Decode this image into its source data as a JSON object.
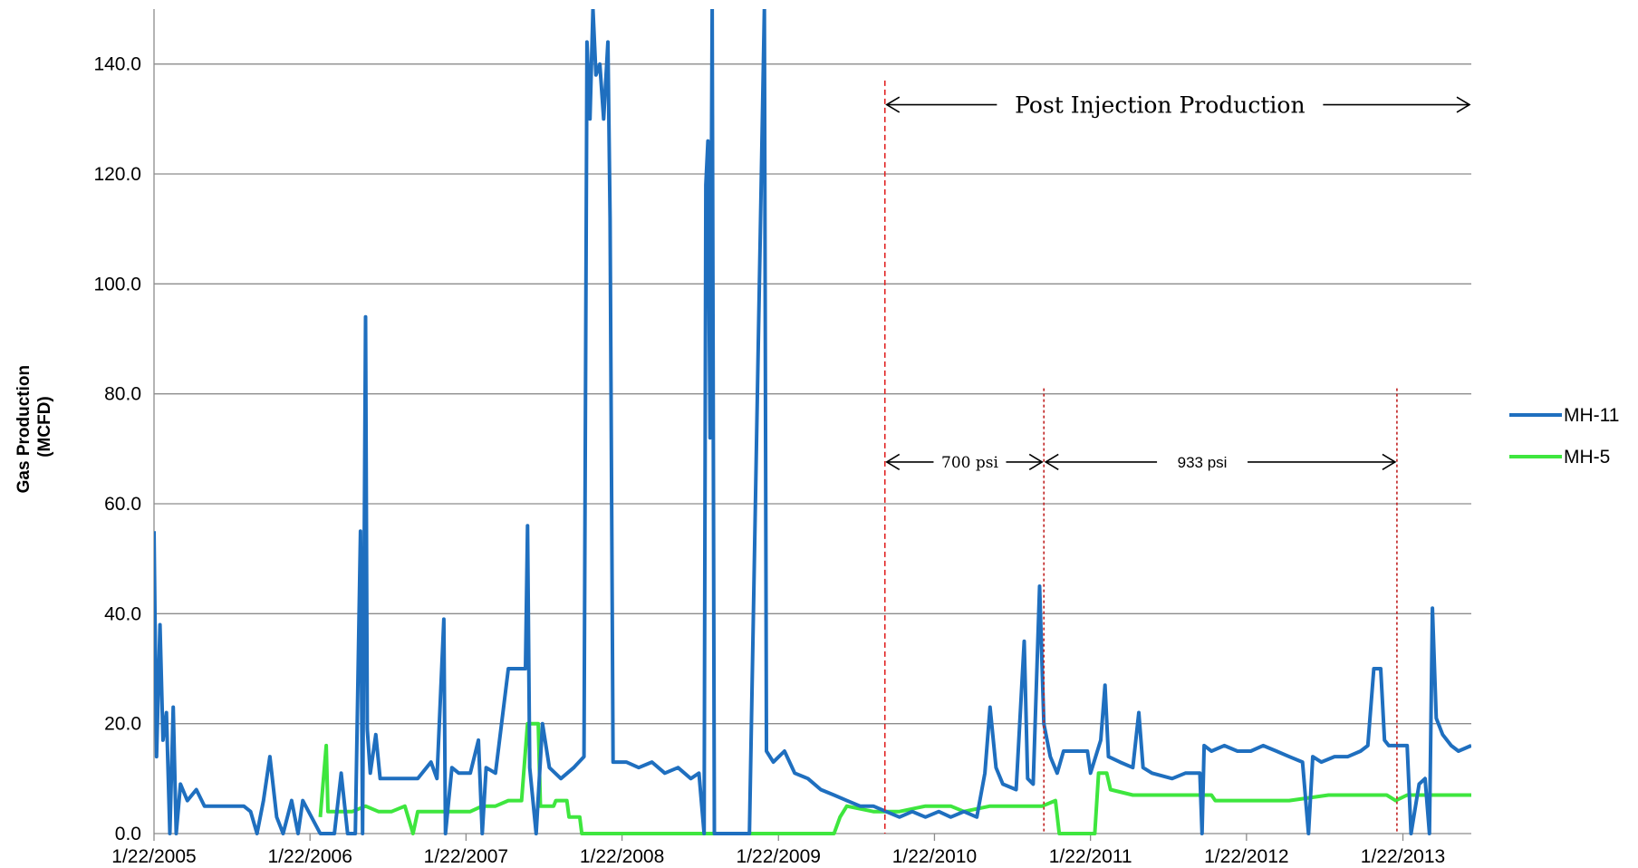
{
  "chart_data": {
    "type": "line",
    "title": "",
    "xlabel": "",
    "ylabel_line1": "Gas Production",
    "ylabel_line2": "(MCFD)",
    "ylim": [
      0,
      150
    ],
    "y_ticks": [
      "0.0",
      "20.0",
      "40.0",
      "60.0",
      "80.0",
      "100.0",
      "120.0",
      "140.0"
    ],
    "y_tick_values": [
      0,
      20,
      40,
      60,
      80,
      100,
      120,
      140
    ],
    "x_range": [
      "2005-01-22",
      "2013-07-01"
    ],
    "x_ticks": [
      "1/22/2005",
      "1/22/2006",
      "1/22/2007",
      "1/22/2008",
      "1/22/2009",
      "1/22/2010",
      "1/22/2011",
      "1/22/2012",
      "1/22/2013"
    ],
    "x_tick_dates": [
      "2005-01-22",
      "2006-01-22",
      "2007-01-22",
      "2008-01-22",
      "2009-01-22",
      "2010-01-22",
      "2011-01-22",
      "2012-01-22",
      "2013-01-22"
    ],
    "grid": "horizontal",
    "legend_position": "right",
    "series": [
      {
        "name": "MH-11",
        "color": "#1f6fbf",
        "points": [
          [
            "2005-01-22",
            55
          ],
          [
            "2005-01-28",
            14
          ],
          [
            "2005-02-05",
            38
          ],
          [
            "2005-02-12",
            17
          ],
          [
            "2005-02-20",
            22
          ],
          [
            "2005-02-28",
            0
          ],
          [
            "2005-03-08",
            23
          ],
          [
            "2005-03-15",
            0
          ],
          [
            "2005-03-25",
            9
          ],
          [
            "2005-04-10",
            6
          ],
          [
            "2005-05-01",
            8
          ],
          [
            "2005-05-20",
            5
          ],
          [
            "2005-06-15",
            5
          ],
          [
            "2005-07-15",
            5
          ],
          [
            "2005-08-20",
            5
          ],
          [
            "2005-09-05",
            4
          ],
          [
            "2005-09-20",
            0
          ],
          [
            "2005-10-05",
            6
          ],
          [
            "2005-10-20",
            14
          ],
          [
            "2005-11-05",
            3
          ],
          [
            "2005-11-20",
            0
          ],
          [
            "2005-12-10",
            6
          ],
          [
            "2005-12-25",
            0
          ],
          [
            "2006-01-05",
            6
          ],
          [
            "2006-02-15",
            0
          ],
          [
            "2006-03-10",
            0
          ],
          [
            "2006-03-20",
            0
          ],
          [
            "2006-04-05",
            11
          ],
          [
            "2006-04-20",
            0
          ],
          [
            "2006-05-08",
            0
          ],
          [
            "2006-05-20",
            55
          ],
          [
            "2006-05-25",
            0
          ],
          [
            "2006-06-01",
            94
          ],
          [
            "2006-06-05",
            19
          ],
          [
            "2006-06-12",
            11
          ],
          [
            "2006-06-25",
            18
          ],
          [
            "2006-07-05",
            10
          ],
          [
            "2006-08-01",
            10
          ],
          [
            "2006-09-01",
            10
          ],
          [
            "2006-10-01",
            10
          ],
          [
            "2006-11-01",
            13
          ],
          [
            "2006-11-15",
            10
          ],
          [
            "2006-12-01",
            39
          ],
          [
            "2006-12-05",
            0
          ],
          [
            "2006-12-20",
            12
          ],
          [
            "2007-01-05",
            11
          ],
          [
            "2007-02-01",
            11
          ],
          [
            "2007-02-20",
            17
          ],
          [
            "2007-03-01",
            0
          ],
          [
            "2007-03-10",
            12
          ],
          [
            "2007-04-01",
            11
          ],
          [
            "2007-05-01",
            30
          ],
          [
            "2007-06-10",
            30
          ],
          [
            "2007-06-15",
            56
          ],
          [
            "2007-06-20",
            12
          ],
          [
            "2007-07-05",
            0
          ],
          [
            "2007-07-20",
            20
          ],
          [
            "2007-08-05",
            12
          ],
          [
            "2007-09-01",
            10
          ],
          [
            "2007-10-01",
            12
          ],
          [
            "2007-10-25",
            14
          ],
          [
            "2007-11-01",
            144
          ],
          [
            "2007-11-08",
            130
          ],
          [
            "2007-11-15",
            150
          ],
          [
            "2007-11-22",
            138
          ],
          [
            "2007-12-01",
            140
          ],
          [
            "2007-12-10",
            130
          ],
          [
            "2007-12-20",
            144
          ],
          [
            "2007-12-25",
            112
          ],
          [
            "2008-01-01",
            13
          ],
          [
            "2008-02-01",
            13
          ],
          [
            "2008-03-01",
            12
          ],
          [
            "2008-04-01",
            13
          ],
          [
            "2008-05-01",
            11
          ],
          [
            "2008-06-01",
            12
          ],
          [
            "2008-07-01",
            10
          ],
          [
            "2008-07-20",
            11
          ],
          [
            "2008-08-01",
            0
          ],
          [
            "2008-08-05",
            118
          ],
          [
            "2008-08-10",
            126
          ],
          [
            "2008-08-15",
            72
          ],
          [
            "2008-08-20",
            150
          ],
          [
            "2008-08-25",
            0
          ],
          [
            "2008-09-10",
            0
          ],
          [
            "2008-10-01",
            0
          ],
          [
            "2008-11-15",
            0
          ],
          [
            "2008-12-20",
            150
          ],
          [
            "2008-12-25",
            15
          ],
          [
            "2009-01-10",
            13
          ],
          [
            "2009-02-05",
            15
          ],
          [
            "2009-03-01",
            11
          ],
          [
            "2009-04-01",
            10
          ],
          [
            "2009-05-01",
            8
          ],
          [
            "2009-06-01",
            7
          ],
          [
            "2009-07-01",
            6
          ],
          [
            "2009-08-01",
            5
          ],
          [
            "2009-09-01",
            5
          ],
          [
            "2009-10-01",
            4
          ],
          [
            "2009-11-01",
            3
          ],
          [
            "2009-12-01",
            4
          ],
          [
            "2010-01-01",
            3
          ],
          [
            "2010-02-01",
            4
          ],
          [
            "2010-03-01",
            3
          ],
          [
            "2010-04-01",
            4
          ],
          [
            "2010-05-01",
            3
          ],
          [
            "2010-05-20",
            11
          ],
          [
            "2010-06-01",
            23
          ],
          [
            "2010-06-15",
            12
          ],
          [
            "2010-07-01",
            9
          ],
          [
            "2010-08-01",
            8
          ],
          [
            "2010-08-20",
            35
          ],
          [
            "2010-08-28",
            10
          ],
          [
            "2010-09-10",
            9
          ],
          [
            "2010-09-25",
            45
          ],
          [
            "2010-10-05",
            20
          ],
          [
            "2010-10-20",
            14
          ],
          [
            "2010-11-05",
            11
          ],
          [
            "2010-11-20",
            15
          ],
          [
            "2010-12-15",
            15
          ],
          [
            "2011-01-15",
            15
          ],
          [
            "2011-01-22",
            11
          ],
          [
            "2011-02-15",
            17
          ],
          [
            "2011-02-25",
            27
          ],
          [
            "2011-03-05",
            14
          ],
          [
            "2011-04-01",
            13
          ],
          [
            "2011-05-01",
            12
          ],
          [
            "2011-05-15",
            22
          ],
          [
            "2011-05-25",
            12
          ],
          [
            "2011-06-15",
            11
          ],
          [
            "2011-08-01",
            10
          ],
          [
            "2011-09-01",
            11
          ],
          [
            "2011-10-05",
            11
          ],
          [
            "2011-10-10",
            0
          ],
          [
            "2011-10-15",
            16
          ],
          [
            "2011-11-01",
            15
          ],
          [
            "2011-12-01",
            16
          ],
          [
            "2012-01-01",
            15
          ],
          [
            "2012-02-01",
            15
          ],
          [
            "2012-03-01",
            16
          ],
          [
            "2012-04-01",
            15
          ],
          [
            "2012-05-01",
            14
          ],
          [
            "2012-06-01",
            13
          ],
          [
            "2012-06-15",
            0
          ],
          [
            "2012-06-25",
            14
          ],
          [
            "2012-07-15",
            13
          ],
          [
            "2012-08-15",
            14
          ],
          [
            "2012-09-15",
            14
          ],
          [
            "2012-10-15",
            15
          ],
          [
            "2012-11-01",
            16
          ],
          [
            "2012-11-15",
            30
          ],
          [
            "2012-12-01",
            30
          ],
          [
            "2012-12-10",
            17
          ],
          [
            "2012-12-20",
            16
          ],
          [
            "2013-01-10",
            16
          ],
          [
            "2013-02-01",
            16
          ],
          [
            "2013-02-10",
            0
          ],
          [
            "2013-03-01",
            9
          ],
          [
            "2013-03-15",
            10
          ],
          [
            "2013-03-25",
            0
          ],
          [
            "2013-04-01",
            41
          ],
          [
            "2013-04-10",
            21
          ],
          [
            "2013-04-25",
            18
          ],
          [
            "2013-05-15",
            16
          ],
          [
            "2013-06-01",
            15
          ],
          [
            "2013-07-01",
            16
          ]
        ]
      },
      {
        "name": "MH-5",
        "color": "#3ee63e",
        "points": [
          [
            "2006-02-15",
            3
          ],
          [
            "2006-03-01",
            16
          ],
          [
            "2006-03-05",
            4
          ],
          [
            "2006-04-01",
            4
          ],
          [
            "2006-05-01",
            4
          ],
          [
            "2006-06-01",
            5
          ],
          [
            "2006-07-01",
            4
          ],
          [
            "2006-08-01",
            4
          ],
          [
            "2006-09-01",
            5
          ],
          [
            "2006-09-20",
            0
          ],
          [
            "2006-10-01",
            4
          ],
          [
            "2006-11-01",
            4
          ],
          [
            "2006-12-01",
            4
          ],
          [
            "2007-01-01",
            4
          ],
          [
            "2007-02-01",
            4
          ],
          [
            "2007-03-01",
            5
          ],
          [
            "2007-04-01",
            5
          ],
          [
            "2007-05-01",
            6
          ],
          [
            "2007-06-01",
            6
          ],
          [
            "2007-06-15",
            20
          ],
          [
            "2007-07-10",
            20
          ],
          [
            "2007-07-15",
            5
          ],
          [
            "2007-08-15",
            5
          ],
          [
            "2007-08-20",
            6
          ],
          [
            "2007-09-15",
            6
          ],
          [
            "2007-09-20",
            3
          ],
          [
            "2007-10-15",
            3
          ],
          [
            "2007-10-20",
            0
          ],
          [
            "2008-06-01",
            0
          ],
          [
            "2009-01-01",
            0
          ],
          [
            "2009-06-01",
            0
          ],
          [
            "2009-06-15",
            3
          ],
          [
            "2009-07-01",
            5
          ],
          [
            "2009-09-01",
            4
          ],
          [
            "2009-11-01",
            4
          ],
          [
            "2010-01-01",
            5
          ],
          [
            "2010-03-01",
            5
          ],
          [
            "2010-04-01",
            4
          ],
          [
            "2010-06-01",
            5
          ],
          [
            "2010-08-01",
            5
          ],
          [
            "2010-10-01",
            5
          ],
          [
            "2010-11-01",
            6
          ],
          [
            "2010-11-10",
            0
          ],
          [
            "2011-01-22",
            0
          ],
          [
            "2011-02-01",
            0
          ],
          [
            "2011-02-10",
            11
          ],
          [
            "2011-03-01",
            11
          ],
          [
            "2011-03-10",
            8
          ],
          [
            "2011-05-01",
            7
          ],
          [
            "2011-08-01",
            7
          ],
          [
            "2011-11-01",
            7
          ],
          [
            "2011-11-10",
            6
          ],
          [
            "2012-02-01",
            6
          ],
          [
            "2012-05-01",
            6
          ],
          [
            "2012-08-01",
            7
          ],
          [
            "2012-11-01",
            7
          ],
          [
            "2012-12-15",
            7
          ],
          [
            "2013-01-05",
            6
          ],
          [
            "2013-02-01",
            7
          ],
          [
            "2013-03-01",
            7
          ],
          [
            "2013-04-01",
            7
          ],
          [
            "2013-05-15",
            7
          ],
          [
            "2013-07-01",
            7
          ]
        ]
      }
    ],
    "markers": [
      {
        "date": "2009-09-28",
        "color": "#e02020"
      },
      {
        "date": "2010-10-05",
        "color": "#c02020"
      },
      {
        "date": "2013-01-08",
        "color": "#c02020"
      }
    ],
    "annotations": [
      {
        "text": "Post Injection Production",
        "from": "2009-09-28",
        "to": "2013-07-01",
        "y": 132.6
      },
      {
        "text": "700 psi",
        "from": "2009-09-28",
        "to": "2010-10-05",
        "y": 67.6
      },
      {
        "text": "933 psi",
        "from": "2010-10-05",
        "to": "2013-01-08",
        "y": 67.6
      }
    ]
  }
}
